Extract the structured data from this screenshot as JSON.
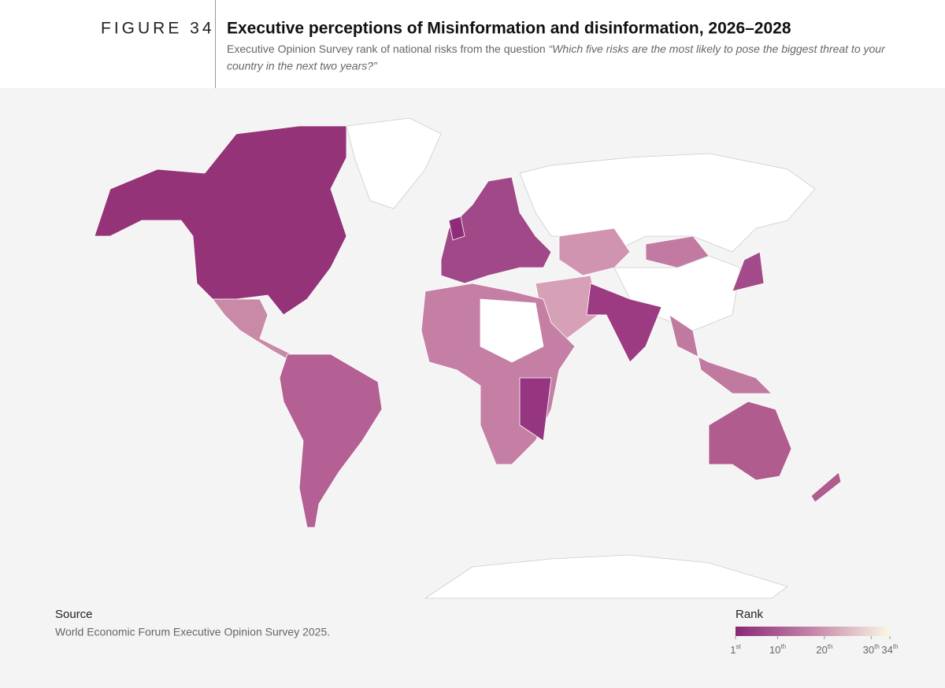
{
  "header": {
    "figure_label": "FIGURE 34",
    "title": "Executive perceptions of Misinformation and disinformation, 2026–2028",
    "subtitle_plain": "Executive Opinion Survey rank of national risks from the question",
    "subtitle_quote_1": "“Which five risks are the most likely to pose the biggest threat to your",
    "subtitle_quote_2": "country in the next two years?”"
  },
  "source": {
    "heading": "Source",
    "text": "World Economic Forum Executive Opinion Survey 2025."
  },
  "legend": {
    "title": "Rank",
    "range": [
      1,
      34
    ],
    "colorscale": [
      "#8a2876",
      "#c486a8",
      "#fbf7e4"
    ],
    "ticks": [
      {
        "value": 1,
        "label": "1",
        "suffix": "st"
      },
      {
        "value": 10,
        "label": "10",
        "suffix": "th"
      },
      {
        "value": 20,
        "label": "20",
        "suffix": "th"
      },
      {
        "value": 30,
        "label": "30",
        "suffix": "th"
      },
      {
        "value": 34,
        "label": "34",
        "suffix": "th"
      }
    ]
  }
}
